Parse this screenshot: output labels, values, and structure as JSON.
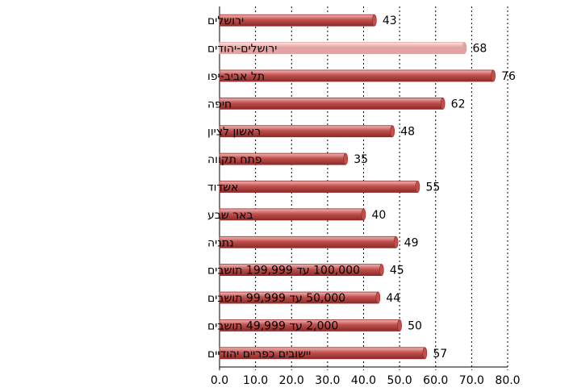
{
  "chart_data": {
    "type": "bar",
    "orientation": "horizontal",
    "categories": [
      "ירושלים",
      "ירושלים-יהודים",
      "תל אביב-יפו",
      "חיפה",
      "ראשון לציון",
      "פתח תקווה",
      "אשדוד",
      "באר שבע",
      "נתניה",
      "100,000 עד 199,999 תושבים",
      "50,000 עד 99,999 תושבים",
      "2,000 עד 49,999 תושבים",
      "יישובים כפריים יהודיים"
    ],
    "values": [
      43,
      68,
      76,
      62,
      48,
      35,
      55,
      40,
      49,
      45,
      44,
      50,
      57
    ],
    "highlight_index": 1,
    "xlim": [
      0,
      80
    ],
    "xticks": [
      "0.0",
      "10.0",
      "20.0",
      "30.0",
      "40.0",
      "50.0",
      "60.0",
      "70.0",
      "80.0"
    ],
    "grid": "vertical",
    "colors": {
      "bar": "#c0504d",
      "bar_dark": "#8c2a28",
      "bar_light": "#f2b8b6",
      "highlight": "#e3a3a2",
      "highlight_light": "#fbe3e3",
      "grid": "#000000"
    }
  }
}
